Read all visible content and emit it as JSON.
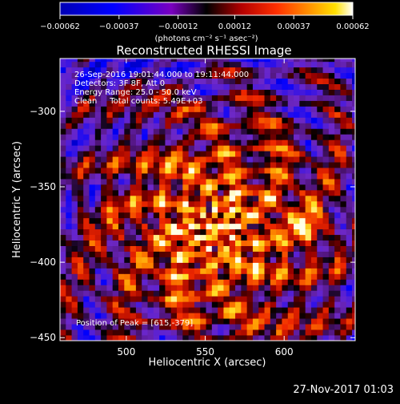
{
  "chart_data": {
    "type": "heatmap",
    "title": "Reconstructed RHESSI Image",
    "xlabel": "Heliocentric X (arcsec)",
    "ylabel": "Heliocentric Y (arcsec)",
    "xlim": [
      458,
      645
    ],
    "ylim": [
      -452,
      -265
    ],
    "x_ticks": [
      500,
      550,
      600
    ],
    "y_ticks": [
      -450,
      -400,
      -350,
      -300
    ],
    "x_tick_labels": [
      "500",
      "550",
      "600"
    ],
    "y_tick_labels": [
      "−450",
      "−400",
      "−350",
      "−300"
    ],
    "colorbar": {
      "range": [
        -0.00062,
        0.00062
      ],
      "ticks": [
        -0.00062,
        -0.00037,
        -0.00012,
        0.00012,
        0.00037,
        0.00062
      ],
      "tick_labels": [
        "−0.00062",
        "−0.00037",
        "−0.00012",
        "0.00012",
        "0.00037",
        "0.00062"
      ],
      "unit_label": "(photons cm⁻² s⁻¹ asec⁻²)"
    },
    "annotations": [
      "26-Sep-2016 19:01:44.000 to 19:11:44.000",
      "Detectors: 3F 8F, Att 0",
      "Energy Range: 25.0 - 50.0 keV",
      "Clean     Total counts: 5.49E+03"
    ],
    "peak_label": "Position of Peak = [615,-379]",
    "peak": [
      615,
      -379
    ],
    "image_center": [
      555,
      -380
    ],
    "grid": false
  },
  "footer": {
    "date": "27-Nov-2017 01:03"
  }
}
